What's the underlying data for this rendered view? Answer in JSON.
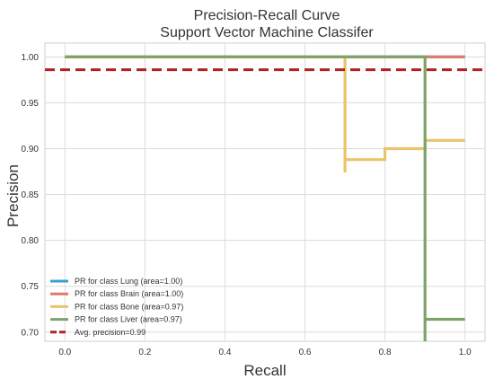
{
  "chart_data": {
    "type": "line",
    "title": [
      "Precision-Recall Curve",
      "Support Vector Machine Classifer"
    ],
    "xlabel": "Recall",
    "ylabel": "Precision",
    "xlim": [
      -0.05,
      1.05
    ],
    "ylim": [
      0.69,
      1.015
    ],
    "xticks": [
      "0.0",
      "0.2",
      "0.4",
      "0.6",
      "0.8",
      "1.0"
    ],
    "yticks": [
      "0.70",
      "0.75",
      "0.80",
      "0.85",
      "0.90",
      "0.95",
      "1.00"
    ],
    "grid": true,
    "legend_position": "bottom-left",
    "series": [
      {
        "name": "PR for class Lung (area=1.00)",
        "color": "#3c9fd0",
        "points": [
          [
            0.0,
            1.0
          ],
          [
            1.0,
            1.0
          ]
        ]
      },
      {
        "name": "PR for class Brain (area=1.00)",
        "color": "#e07b6a",
        "points": [
          [
            0.0,
            1.0
          ],
          [
            1.0,
            1.0
          ]
        ]
      },
      {
        "name": "PR for class Bone (area=0.97)",
        "color": "#e9c46a",
        "points": [
          [
            0.0,
            1.0
          ],
          [
            0.7,
            1.0
          ],
          [
            0.7,
            0.874
          ],
          [
            0.7,
            0.888
          ],
          [
            0.8,
            0.888
          ],
          [
            0.8,
            0.9
          ],
          [
            0.9,
            0.9
          ],
          [
            0.9,
            0.909
          ],
          [
            1.0,
            0.909
          ]
        ]
      },
      {
        "name": "PR for class Liver (area=0.97)",
        "color": "#7ea36a",
        "points": [
          [
            0.0,
            1.0
          ],
          [
            0.9,
            1.0
          ],
          [
            0.9,
            0.69
          ],
          [
            0.9,
            0.714
          ],
          [
            1.0,
            0.714
          ]
        ]
      },
      {
        "name": "Avg. precision=0.99",
        "color": "#b22222",
        "dashed": true,
        "points": [
          [
            -0.05,
            0.986
          ],
          [
            1.05,
            0.986
          ]
        ]
      }
    ]
  }
}
